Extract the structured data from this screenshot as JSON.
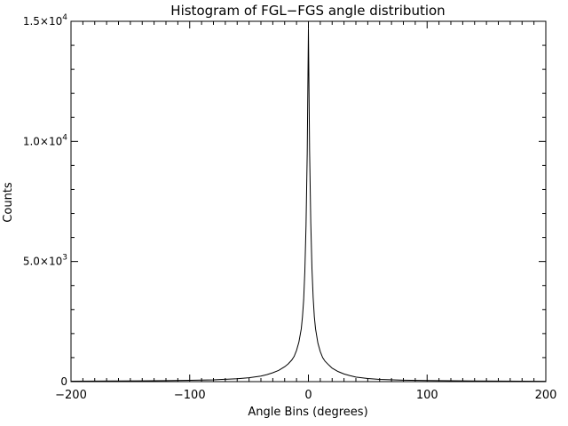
{
  "chart_data": {
    "type": "line",
    "title": "Histogram of FGL−FGS angle distribution",
    "xlabel": "Angle Bins (degrees)",
    "ylabel": "Counts",
    "xlim": [
      -200,
      200
    ],
    "ylim": [
      0,
      15000
    ],
    "grid": false,
    "x_ticks": [
      {
        "value": -200,
        "label": "−200"
      },
      {
        "value": -100,
        "label": "−100"
      },
      {
        "value": 0,
        "label": "0"
      },
      {
        "value": 100,
        "label": "100"
      },
      {
        "value": 200,
        "label": "200"
      }
    ],
    "y_ticks": [
      {
        "value": 0,
        "mantissa": "0",
        "exponent": ""
      },
      {
        "value": 5000,
        "mantissa": "5.0×10",
        "exponent": "3"
      },
      {
        "value": 10000,
        "mantissa": "1.0×10",
        "exponent": "4"
      },
      {
        "value": 15000,
        "mantissa": "1.5×10",
        "exponent": "4"
      }
    ],
    "x": [
      -200,
      -180,
      -160,
      -140,
      -120,
      -100,
      -80,
      -60,
      -50,
      -40,
      -35,
      -30,
      -25,
      -20,
      -17,
      -14,
      -12,
      -10,
      -8,
      -6,
      -5,
      -4,
      -3,
      -2,
      -1,
      0,
      1,
      2,
      3,
      4,
      5,
      6,
      8,
      10,
      12,
      14,
      17,
      20,
      25,
      30,
      35,
      40,
      50,
      60,
      80,
      100,
      120,
      140,
      160,
      180,
      200
    ],
    "y": [
      20,
      25,
      28,
      32,
      40,
      55,
      75,
      120,
      160,
      230,
      290,
      370,
      470,
      620,
      740,
      900,
      1050,
      1300,
      1650,
      2200,
      2700,
      3400,
      4600,
      6500,
      9500,
      14700,
      9600,
      6600,
      4700,
      3500,
      2700,
      2200,
      1600,
      1250,
      1000,
      850,
      700,
      560,
      420,
      320,
      250,
      190,
      130,
      90,
      60,
      45,
      35,
      28,
      22,
      18,
      15
    ]
  }
}
